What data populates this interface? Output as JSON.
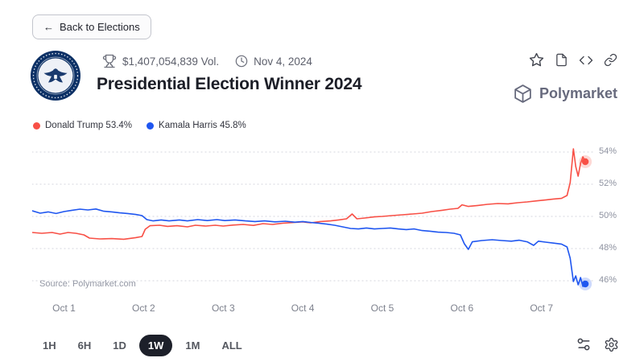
{
  "back_button": {
    "arrow": "←",
    "label": "Back to Elections"
  },
  "header": {
    "volume": "$1,407,054,839 Vol.",
    "date": "Nov 4, 2024",
    "title": "Presidential Election Winner 2024",
    "brand": "Polymarket"
  },
  "legend": [
    {
      "label": "Donald Trump 53.4%"
    },
    {
      "label": "Kamala Harris 45.8%"
    }
  ],
  "chart_data": {
    "type": "line",
    "title": "Presidential Election Winner 2024",
    "source": "Source: Polymarket.com",
    "grid": "dotted-horizontal",
    "legend_position": "top-left",
    "xlim": [
      0.6,
      7.65
    ],
    "ylim": [
      45.1,
      54.6
    ],
    "x_ticks": [
      {
        "value": 1,
        "label": "Oct 1"
      },
      {
        "value": 2,
        "label": "Oct 2"
      },
      {
        "value": 3,
        "label": "Oct 3"
      },
      {
        "value": 4,
        "label": "Oct 4"
      },
      {
        "value": 5,
        "label": "Oct 5"
      },
      {
        "value": 6,
        "label": "Oct 6"
      },
      {
        "value": 7,
        "label": "Oct 7"
      }
    ],
    "y_ticks": [
      {
        "value": 54,
        "label": "54%"
      },
      {
        "value": 52,
        "label": "52%"
      },
      {
        "value": 50,
        "label": "50%"
      },
      {
        "value": 48,
        "label": "48%"
      },
      {
        "value": 46,
        "label": "46%"
      }
    ],
    "series": [
      {
        "name": "Donald Trump",
        "color": "#f85046",
        "current": 53.4,
        "points": [
          [
            0.6,
            49.0
          ],
          [
            0.72,
            48.95
          ],
          [
            0.85,
            49.0
          ],
          [
            0.95,
            48.9
          ],
          [
            1.05,
            49.0
          ],
          [
            1.15,
            48.95
          ],
          [
            1.25,
            48.85
          ],
          [
            1.32,
            48.65
          ],
          [
            1.45,
            48.6
          ],
          [
            1.6,
            48.62
          ],
          [
            1.75,
            48.58
          ],
          [
            1.9,
            48.68
          ],
          [
            1.98,
            48.75
          ],
          [
            2.02,
            49.2
          ],
          [
            2.08,
            49.42
          ],
          [
            2.2,
            49.45
          ],
          [
            2.3,
            49.38
          ],
          [
            2.42,
            49.42
          ],
          [
            2.55,
            49.35
          ],
          [
            2.65,
            49.45
          ],
          [
            2.78,
            49.4
          ],
          [
            2.9,
            49.45
          ],
          [
            3.0,
            49.4
          ],
          [
            3.12,
            49.46
          ],
          [
            3.25,
            49.5
          ],
          [
            3.38,
            49.44
          ],
          [
            3.5,
            49.55
          ],
          [
            3.62,
            49.5
          ],
          [
            3.75,
            49.58
          ],
          [
            3.88,
            49.62
          ],
          [
            4.0,
            49.66
          ],
          [
            4.1,
            49.6
          ],
          [
            4.22,
            49.68
          ],
          [
            4.35,
            49.72
          ],
          [
            4.45,
            49.78
          ],
          [
            4.55,
            49.85
          ],
          [
            4.62,
            50.15
          ],
          [
            4.68,
            49.85
          ],
          [
            4.78,
            49.9
          ],
          [
            4.9,
            49.97
          ],
          [
            5.0,
            50.0
          ],
          [
            5.12,
            50.05
          ],
          [
            5.25,
            50.1
          ],
          [
            5.38,
            50.15
          ],
          [
            5.5,
            50.2
          ],
          [
            5.62,
            50.3
          ],
          [
            5.75,
            50.38
          ],
          [
            5.85,
            50.45
          ],
          [
            5.95,
            50.5
          ],
          [
            6.0,
            50.72
          ],
          [
            6.08,
            50.62
          ],
          [
            6.2,
            50.68
          ],
          [
            6.32,
            50.75
          ],
          [
            6.45,
            50.8
          ],
          [
            6.58,
            50.78
          ],
          [
            6.7,
            50.85
          ],
          [
            6.82,
            50.9
          ],
          [
            6.95,
            50.97
          ],
          [
            7.05,
            51.02
          ],
          [
            7.15,
            51.08
          ],
          [
            7.25,
            51.12
          ],
          [
            7.32,
            51.3
          ],
          [
            7.36,
            52.1
          ],
          [
            7.4,
            54.2
          ],
          [
            7.43,
            53.1
          ],
          [
            7.46,
            52.5
          ],
          [
            7.49,
            53.3
          ],
          [
            7.52,
            53.7
          ],
          [
            7.55,
            53.4
          ]
        ]
      },
      {
        "name": "Kamala Harris",
        "color": "#1f56f0",
        "current": 45.8,
        "points": [
          [
            0.6,
            50.35
          ],
          [
            0.7,
            50.2
          ],
          [
            0.8,
            50.28
          ],
          [
            0.9,
            50.18
          ],
          [
            1.0,
            50.3
          ],
          [
            1.1,
            50.38
          ],
          [
            1.2,
            50.45
          ],
          [
            1.3,
            50.4
          ],
          [
            1.4,
            50.46
          ],
          [
            1.5,
            50.32
          ],
          [
            1.6,
            50.28
          ],
          [
            1.7,
            50.22
          ],
          [
            1.8,
            50.18
          ],
          [
            1.9,
            50.12
          ],
          [
            1.98,
            50.05
          ],
          [
            2.04,
            49.8
          ],
          [
            2.12,
            49.72
          ],
          [
            2.22,
            49.78
          ],
          [
            2.32,
            49.72
          ],
          [
            2.45,
            49.78
          ],
          [
            2.55,
            49.72
          ],
          [
            2.68,
            49.8
          ],
          [
            2.8,
            49.74
          ],
          [
            2.92,
            49.8
          ],
          [
            3.02,
            49.74
          ],
          [
            3.15,
            49.78
          ],
          [
            3.28,
            49.72
          ],
          [
            3.4,
            49.68
          ],
          [
            3.52,
            49.72
          ],
          [
            3.65,
            49.66
          ],
          [
            3.78,
            49.7
          ],
          [
            3.9,
            49.64
          ],
          [
            4.0,
            49.68
          ],
          [
            4.1,
            49.62
          ],
          [
            4.2,
            49.58
          ],
          [
            4.3,
            49.52
          ],
          [
            4.4,
            49.45
          ],
          [
            4.5,
            49.35
          ],
          [
            4.6,
            49.25
          ],
          [
            4.7,
            49.22
          ],
          [
            4.8,
            49.28
          ],
          [
            4.9,
            49.22
          ],
          [
            5.0,
            49.25
          ],
          [
            5.1,
            49.28
          ],
          [
            5.2,
            49.22
          ],
          [
            5.3,
            49.18
          ],
          [
            5.4,
            49.22
          ],
          [
            5.5,
            49.12
          ],
          [
            5.6,
            49.08
          ],
          [
            5.7,
            49.02
          ],
          [
            5.8,
            49.0
          ],
          [
            5.9,
            48.95
          ],
          [
            5.98,
            48.85
          ],
          [
            6.03,
            48.3
          ],
          [
            6.08,
            47.95
          ],
          [
            6.13,
            48.42
          ],
          [
            6.25,
            48.5
          ],
          [
            6.38,
            48.55
          ],
          [
            6.5,
            48.5
          ],
          [
            6.62,
            48.46
          ],
          [
            6.72,
            48.52
          ],
          [
            6.82,
            48.42
          ],
          [
            6.9,
            48.2
          ],
          [
            6.96,
            48.46
          ],
          [
            7.05,
            48.4
          ],
          [
            7.15,
            48.34
          ],
          [
            7.25,
            48.28
          ],
          [
            7.32,
            48.1
          ],
          [
            7.36,
            47.4
          ],
          [
            7.4,
            45.95
          ],
          [
            7.43,
            46.3
          ],
          [
            7.46,
            45.75
          ],
          [
            7.49,
            46.2
          ],
          [
            7.52,
            45.65
          ],
          [
            7.55,
            45.8
          ]
        ]
      }
    ]
  },
  "footer": {
    "ranges": [
      {
        "label": "1H",
        "active": false
      },
      {
        "label": "6H",
        "active": false
      },
      {
        "label": "1D",
        "active": false
      },
      {
        "label": "1W",
        "active": true
      },
      {
        "label": "1M",
        "active": false
      },
      {
        "label": "ALL",
        "active": false
      }
    ]
  },
  "colors": {
    "trump_red": "#f85046",
    "harris_blue": "#1f56f0",
    "active_pill": "#1d202a",
    "seal_navy": "#0d3166"
  }
}
